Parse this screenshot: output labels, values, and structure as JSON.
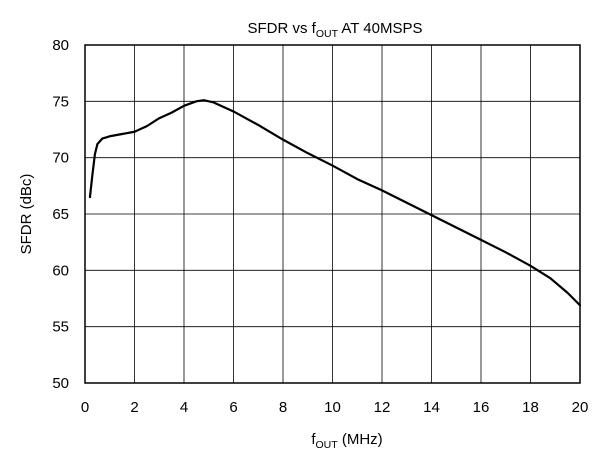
{
  "chart_data": {
    "type": "line",
    "title": {
      "prefix": "SFDR vs f",
      "subscript": "OUT",
      "suffix": " AT 40MSPS"
    },
    "xlabel": {
      "prefix": "f",
      "subscript": "OUT",
      "suffix": " (MHz)"
    },
    "ylabel": "SFDR (dBc)",
    "xlim": [
      0,
      20
    ],
    "ylim": [
      50,
      80
    ],
    "x_ticks": [
      0,
      2,
      4,
      6,
      8,
      10,
      12,
      14,
      16,
      18,
      20
    ],
    "y_ticks": [
      50,
      55,
      60,
      65,
      70,
      75,
      80
    ],
    "grid": true,
    "series": [
      {
        "color": "#000000",
        "points": [
          [
            0.2,
            66.5
          ],
          [
            0.3,
            68.5
          ],
          [
            0.4,
            70.3
          ],
          [
            0.5,
            71.2
          ],
          [
            0.7,
            71.7
          ],
          [
            1.0,
            71.9
          ],
          [
            1.5,
            72.1
          ],
          [
            2.0,
            72.3
          ],
          [
            2.5,
            72.8
          ],
          [
            3.0,
            73.5
          ],
          [
            3.5,
            74.0
          ],
          [
            4.0,
            74.6
          ],
          [
            4.5,
            75.0
          ],
          [
            4.8,
            75.1
          ],
          [
            5.2,
            74.9
          ],
          [
            6.0,
            74.1
          ],
          [
            7.0,
            72.9
          ],
          [
            8.0,
            71.6
          ],
          [
            9.0,
            70.4
          ],
          [
            10.0,
            69.3
          ],
          [
            11.0,
            68.1
          ],
          [
            12.0,
            67.1
          ],
          [
            13.0,
            66.0
          ],
          [
            14.0,
            64.9
          ],
          [
            15.0,
            63.8
          ],
          [
            16.0,
            62.7
          ],
          [
            17.0,
            61.6
          ],
          [
            18.0,
            60.4
          ],
          [
            18.8,
            59.3
          ],
          [
            19.5,
            58.0
          ],
          [
            20.0,
            56.9
          ]
        ]
      }
    ]
  }
}
